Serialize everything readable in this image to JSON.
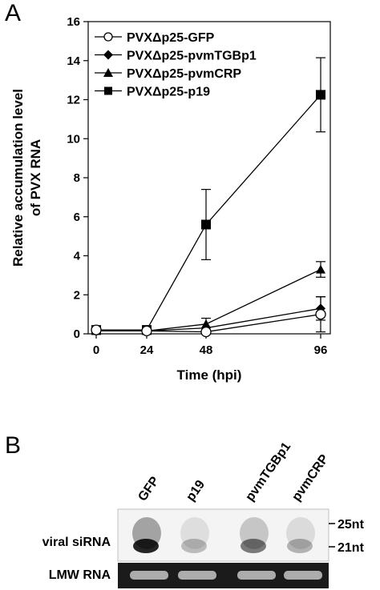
{
  "panel_a_label": "A",
  "panel_b_label": "B",
  "chart_data": {
    "type": "line",
    "title": "",
    "xlabel": "Time (hpi)",
    "ylabel_lines": [
      "Relative accumulation level",
      "of PVX RNA"
    ],
    "x": [
      0,
      24,
      48,
      96
    ],
    "x_ticks": [
      0,
      24,
      48,
      96
    ],
    "y_ticks": [
      0,
      2,
      4,
      6,
      8,
      10,
      12,
      14,
      16
    ],
    "xlim": [
      0,
      96
    ],
    "ylim": [
      0,
      16
    ],
    "legend_position": "top-left",
    "series": [
      {
        "name": "PVXΔp25-GFP",
        "marker": "open-circle",
        "values": [
          0.2,
          0.15,
          0.1,
          1.0
        ],
        "errors": [
          0.1,
          0.1,
          0.1,
          0.9
        ]
      },
      {
        "name": "PVXΔp25-pvmTGBp1",
        "marker": "diamond",
        "values": [
          0.15,
          0.15,
          0.3,
          1.3
        ],
        "errors": [
          0.1,
          0.1,
          0.2,
          0.6
        ]
      },
      {
        "name": "PVXΔp25-pvmCRP",
        "marker": "triangle",
        "values": [
          0.15,
          0.15,
          0.5,
          3.3
        ],
        "errors": [
          0.1,
          0.1,
          0.3,
          0.4
        ]
      },
      {
        "name": "PVXΔp25-p19",
        "marker": "square",
        "values": [
          0.2,
          0.2,
          5.6,
          12.25
        ],
        "errors": [
          0.1,
          0.15,
          1.8,
          1.9
        ]
      }
    ]
  },
  "blot": {
    "lanes": [
      "GFP",
      "p19",
      "pvmTGBp1",
      "pvmCRP"
    ],
    "rows": [
      "viral siRNA",
      "LMW RNA"
    ],
    "size_markers": [
      "25nt",
      "21nt"
    ],
    "siRNA_intensity": [
      0.95,
      0.25,
      0.55,
      0.3
    ]
  }
}
